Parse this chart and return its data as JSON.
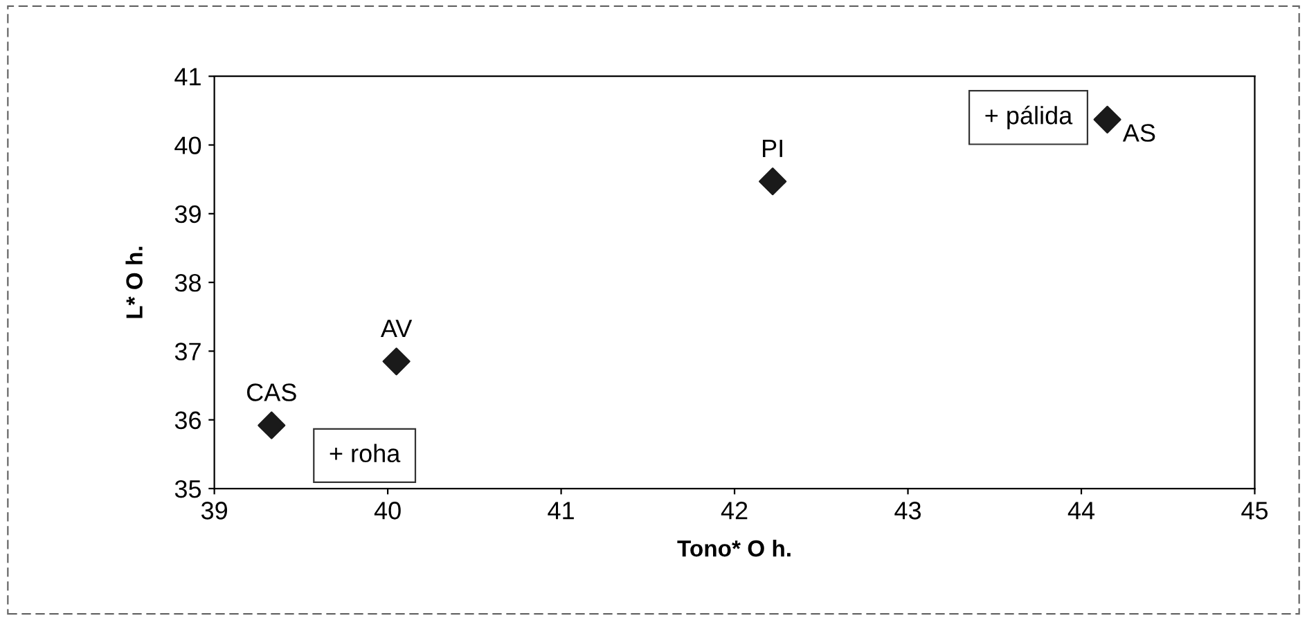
{
  "chart_data": {
    "type": "scatter",
    "xlabel": "Tono* O h.",
    "ylabel": "L* O h.",
    "x": [
      39.33,
      40.05,
      42.22,
      44.15
    ],
    "series": [
      {
        "color": "#1a1a1a",
        "values": [
          35.92,
          36.85,
          39.47,
          40.37
        ]
      }
    ],
    "marker": "diamond",
    "xlim": [
      39,
      45
    ],
    "xticks": [
      39,
      40,
      41,
      42,
      43,
      44,
      45
    ],
    "ylim": [
      35,
      41
    ],
    "yticks": [
      35,
      36,
      37,
      38,
      39,
      40,
      41
    ],
    "grid": false,
    "legend": false,
    "annotations": [
      {
        "text": "CAS",
        "x": 39.33,
        "y": 35.92
      },
      {
        "text": "AV",
        "x": 40.05,
        "y": 36.85
      },
      {
        "text": "PI",
        "x": 42.22,
        "y": 39.47
      },
      {
        "text": "AS",
        "x": 44.15,
        "y": 40.37
      },
      "+ roha",
      "+ pálida"
    ]
  }
}
